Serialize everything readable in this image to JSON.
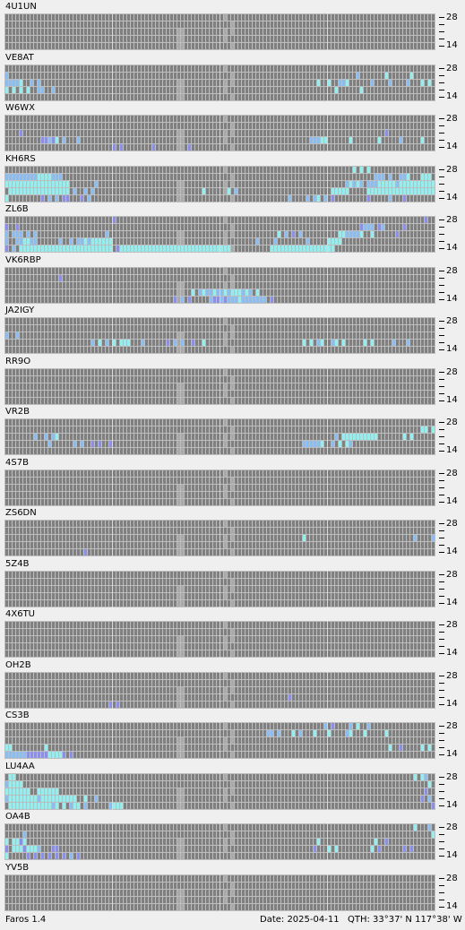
{
  "app": {
    "name": "Faros 1.4"
  },
  "status": {
    "date_label": "Date: 2025-04-11",
    "qth_label": "QTH: 33°37' N  117°38' W"
  },
  "colors": {
    "empty": "#808080",
    "grid_line": "#bdbdbd",
    "hour_line": "#d8d8d8",
    "gap": "#a9a9a9",
    "weak": "#8a8ef0",
    "mid": "#88bdf5",
    "strong": "#8ff0f2",
    "best": "#9ffbbf"
  },
  "axis": {
    "top_label": "28",
    "bottom_label": "14"
  },
  "beacons": [
    {
      "name": "4U1UN",
      "rows": [
        "........................................................................................................................................",
        "........................................................................................................................................",
        "........................................................................................................................................",
        "........................................................................................................................................",
        "........................................................................................................................................"
      ]
    },
    {
      "name": "VE8AT",
      "rows": [
        "..............................................................................................................................3..........",
        "..2.................................................................................................2.......3......3.......3.........",
        "..22223..2.2.............................................................................3..3..223......2....2....2...3.3..33.........",
        "..3.3.3.3..22..2..............................................................................3......3...................................",
        "....................................................................................................................................."
      ]
    },
    {
      "name": "W6WX",
      "rows": [
        "........................................................................................................................................",
        "........................................................................................................................................",
        "......1.....................................................................................................1..........................",
        "............11213.2...2................................................................22233......3.......3.....2.....3.......2......",
        "................................1.1........1.........1....................................................................3.3....."
      ]
    },
    {
      "name": "KH6RS",
      "rows": [
        "...................................................................................................3.3.3...................333333333",
        "..2222222223333222.......................................................................................222.2..223...333.2333333333",
        "..333333333333333333.......2.....................................................................23232.2223333323333333333333333333",
        "...33333333333333333.2..2.2..............................3......3.2..........................33333.....333333333333333333333333.333.3",
        "..3.........1.2.2.11...1.2.......................................................2....2.23.2.1.........1.....2...1.............1...."
      ]
    },
    {
      "name": "ZL6B",
      "rows": [
        "................................1......................................................................................1...1.....1.......",
        "..1..1...............................................................................................1222.12.....1.................",
        "..2.222.2.2...................2...............................................3.2.1.2..........3322223..3......1..........2......",
        "..2..223322......2..2.2232333333........................................2....2........2.....3333............................2.....",
        "..1.2.33333333333333333333333333.13333333333333333333333333333333...........333333333333333333......................................."
      ]
    },
    {
      "name": "VK6RBP",
      "rows": [
        "......................................................................................................................................",
        ".................1.......................................................................................................................",
        ".....................................................................................................................................",
        "......................................................3.232232232333232.3.......................................................",
        ".................................................1.2.1.....2112122232222222.1....................................................."
      ]
    },
    {
      "name": "JA2IGY",
      "rows": [
        "....................................................................................................................................1..1",
        "..........................................................................................................................22.2.",
        "..2..2.........................................................................................................................3.1.",
        "..........................2.3.2.3.333...2......1.2.2..1..3...........................3.3.23..23.3.....3.3.....2...2.......1.3..3........",
        "..........................................................................................................................................."
      ]
    },
    {
      "name": "RR9O",
      "rows": [
        "........................................................................................................................................",
        "........................................................................................................................................",
        "........................................................................................................................................",
        "........................................................................................................................................",
        "........................................................................................................................................"
      ]
    },
    {
      "name": "VR2B",
      "rows": [
        "..........................................................................................................................................3.",
        "......................................................................................................................33.3",
        "..........2..2.23.............................................................................2.3333333333.......3.3.......1.3.",
        "..............2......2.2..1.1..1.....................................................222223..2.3.32............................",
        "......................................................................................................................................"
      ]
    },
    {
      "name": "4S7B",
      "rows": [
        "........................................................................................................................................",
        "........................................................................................................................................",
        "........................................................................................................................................",
        "........................................................................................................................................",
        "........................................................................................................................................"
      ]
    },
    {
      "name": "ZS6DN",
      "rows": [
        "........................................................................................................................................",
        ".............................................................................................................................",
        ".....................................................................................3..............................2....2..........",
        "..................................................................................................................................",
        "........................1........................................................................................................."
      ]
    },
    {
      "name": "5Z4B",
      "rows": [
        "........................................................................................................................................",
        "........................................................................................................................................",
        "........................................................................................................................................",
        "........................................................................................................................................",
        "........................................................................................................................................"
      ]
    },
    {
      "name": "4X6TU",
      "rows": [
        "........................................................................................................................................",
        "........................................................................................................................................",
        "........................................................................................................................................",
        "........................................................................................................................................",
        "........................................................................................................................................"
      ]
    },
    {
      "name": "OH2B",
      "rows": [
        "........................................................................................................................................",
        "........................................................................................................................................",
        "........................................................................................................................................",
        ".................................................................................1......................................................",
        "...............................1.1............................................................................................"
      ]
    },
    {
      "name": "CS3B",
      "rows": [
        "...........................................................................................2.1....2.3..2.....",
        "...........................................................................22.2...3.2...3...3....23...3.....3.....",
        "..............................................................................................................................3..",
        "..33.........3...............................................................................................3..1.....3.3..3...3.",
        "..22222211111133331.1............................................................................................................."
      ]
    },
    {
      "name": "LU4AA",
      "rows": [
        "...33...............................................................................................................3.32...1......33...",
        "..23333.................................................................................................................3.3........",
        "..3333333..333333......................................................................................................1...11111.2..",
        "..23333333323333333333..3..2..........................................................................................1.2.111.11.2...",
        "...33333333333323.3.233.2......2333......................................................................................1..1.1.1....."
      ]
    },
    {
      "name": "OA4B",
      "rows": [
        "....................................................................................................................3...2..",
        ".......2.................................................................................................................3.",
        "..3.3313.................................................................................3...............3..1......",
        "..1.33313332...11.......................................................................1...3.3.........3.1......1.1..",
        "..3.....1.1.1.1.1.1.2.1..................................................................................................."
      ]
    },
    {
      "name": "YV5B",
      "rows": [
        "........................................................................................................................................",
        "........................................................................................................................................",
        "........................................................................................................................................",
        "........................................................................................................................................",
        "........................................................................................................................................"
      ]
    }
  ]
}
